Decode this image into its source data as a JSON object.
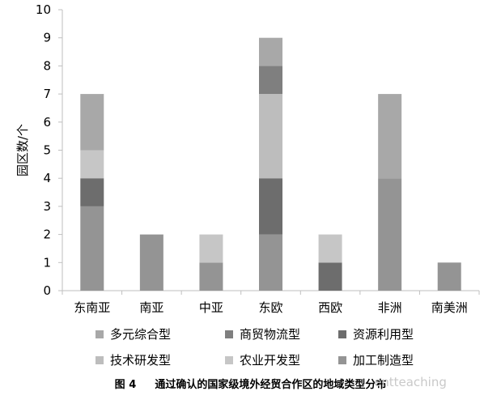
{
  "chart_data": {
    "type": "bar",
    "stacked": true,
    "categories": [
      "东南亚",
      "南亚",
      "中亚",
      "东欧",
      "西欧",
      "非洲",
      "南美洲"
    ],
    "ylabel": "园区数/个",
    "ylim": [
      0,
      10
    ],
    "yticks": [
      0,
      1,
      2,
      3,
      4,
      5,
      6,
      7,
      8,
      9,
      10
    ],
    "grid": false,
    "legend_position": "bottom",
    "series": [
      {
        "name": "加工制造型",
        "color": "#949494",
        "values": [
          3,
          2,
          1,
          2,
          0,
          4,
          1
        ]
      },
      {
        "name": "资源利用型",
        "color": "#6d6d6d",
        "values": [
          1,
          0,
          0,
          2,
          1,
          0,
          0
        ]
      },
      {
        "name": "农业开发型",
        "color": "#c6c6c6",
        "values": [
          1,
          0,
          1,
          0,
          1,
          0,
          0
        ]
      },
      {
        "name": "技术研发型",
        "color": "#bdbdbd",
        "values": [
          0,
          0,
          0,
          3,
          0,
          0,
          0
        ]
      },
      {
        "name": "商贸物流型",
        "color": "#7f7f7f",
        "values": [
          0,
          0,
          0,
          1,
          0,
          0,
          0
        ]
      },
      {
        "name": "多元综合型",
        "color": "#a8a8a8",
        "values": [
          2,
          0,
          0,
          1,
          0,
          3,
          0
        ]
      }
    ],
    "legend_order": [
      "多元综合型",
      "商贸物流型",
      "资源利用型",
      "技术研发型",
      "农业开发型",
      "加工制造型"
    ]
  },
  "caption": {
    "label": "图 4",
    "text": "通过确认的国家级境外经贸合作区的地域类型分布"
  },
  "watermark": "entteaching"
}
